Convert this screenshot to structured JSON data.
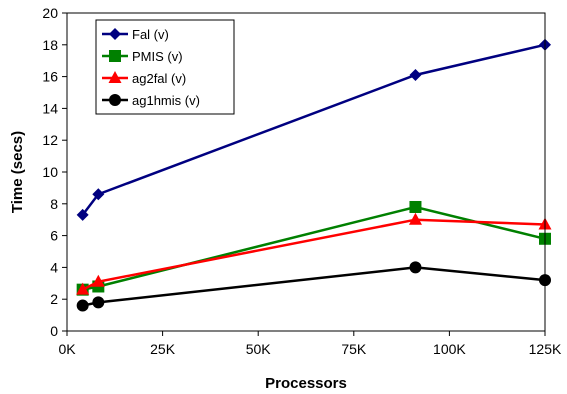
{
  "chart_data": {
    "type": "line",
    "title": "",
    "xlabel": "Processors",
    "ylabel": "Time (secs)",
    "xlim": [
      0,
      125000
    ],
    "ylim": [
      0,
      20
    ],
    "x_ticks": [
      0,
      25000,
      50000,
      75000,
      100000,
      125000
    ],
    "x_tick_labels": [
      "0K",
      "25K",
      "50K",
      "75K",
      "100K",
      "125K"
    ],
    "y_ticks": [
      0,
      2,
      4,
      6,
      8,
      10,
      12,
      14,
      16,
      18,
      20
    ],
    "y_tick_labels": [
      "0",
      "2",
      "4",
      "6",
      "8",
      "10",
      "12",
      "14",
      "16",
      "18",
      "20"
    ],
    "grid": false,
    "legend_position": "top-left",
    "series": [
      {
        "name": "Fal (v)",
        "color": "#000080",
        "marker": "diamond",
        "x": [
          4096,
          8192,
          91125,
          125000
        ],
        "y": [
          7.3,
          8.6,
          16.1,
          18.0
        ]
      },
      {
        "name": "PMIS (v)",
        "color": "#008000",
        "marker": "square",
        "x": [
          4096,
          8192,
          91125,
          125000
        ],
        "y": [
          2.6,
          2.8,
          7.8,
          5.8
        ]
      },
      {
        "name": "ag2fal (v)",
        "color": "#ff0000",
        "marker": "triangle",
        "x": [
          4096,
          8192,
          91125,
          125000
        ],
        "y": [
          2.6,
          3.1,
          7.0,
          6.7
        ]
      },
      {
        "name": "ag1hmis (v)",
        "color": "#000000",
        "marker": "circle",
        "x": [
          4096,
          8192,
          91125,
          125000
        ],
        "y": [
          1.6,
          1.8,
          4.0,
          3.2
        ]
      }
    ]
  }
}
